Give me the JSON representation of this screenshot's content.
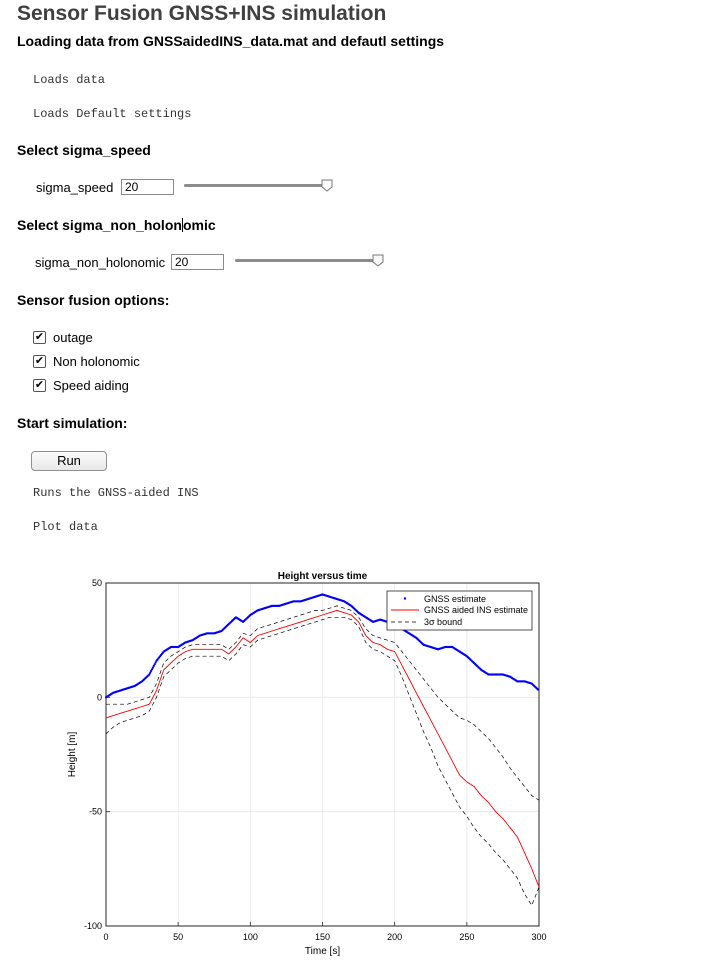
{
  "title": "Sensor Fusion GNSS+INS simulation",
  "loading_heading": "Loading data from GNSSaidedINS_data.mat and defautl settings",
  "loads_data_text": "Loads data",
  "loads_defaults_text": "Loads Default settings",
  "sigma_speed": {
    "heading": "Select sigma_speed",
    "label": "sigma_speed",
    "value": "20",
    "slider_fraction": 1.0
  },
  "sigma_non_holonomic": {
    "heading": "Select sigma_non_holon",
    "heading_tail": "omic",
    "label": "sigma_non_holonomic",
    "value": "20",
    "slider_fraction": 1.0
  },
  "options": {
    "heading": "Sensor fusion options:",
    "items": [
      {
        "label": "outage",
        "checked": true
      },
      {
        "label": "Non holonomic",
        "checked": true
      },
      {
        "label": "Speed aiding",
        "checked": true
      }
    ]
  },
  "simulation": {
    "heading": "Start simulation:",
    "run_label": "Run",
    "runs_text": "Runs the GNSS-aided INS",
    "plot_text": "Plot data"
  },
  "chart_data": {
    "type": "line",
    "title": "Height versus time",
    "xlabel": "Time [s]",
    "ylabel": "Height [m]",
    "xlim": [
      0,
      300
    ],
    "ylim": [
      -100,
      50
    ],
    "xticks": [
      0,
      50,
      100,
      150,
      200,
      250,
      300
    ],
    "yticks": [
      50,
      0,
      -50,
      -100
    ],
    "grid": true,
    "legend_position": "top-right",
    "legend": [
      "GNSS estimate",
      "GNSS aided INS estimate",
      "3σ bound"
    ],
    "series": [
      {
        "name": "GNSS estimate",
        "style": "dots",
        "color": "#0000ff",
        "x": [
          0,
          5,
          10,
          15,
          20,
          25,
          30,
          35,
          40,
          45,
          50,
          55,
          60,
          65,
          70,
          75,
          80,
          85,
          90,
          95,
          100,
          105,
          110,
          115,
          120,
          125,
          130,
          135,
          140,
          145,
          150,
          155,
          160,
          165,
          170,
          175,
          180,
          185,
          190,
          195,
          200,
          205,
          210,
          215,
          220,
          225,
          230,
          235,
          240,
          245,
          250,
          255,
          260,
          265,
          270,
          275,
          280,
          285,
          290,
          295,
          300
        ],
        "y": [
          0,
          2,
          3,
          4,
          5,
          7,
          10,
          16,
          20,
          22,
          22,
          24,
          25,
          27,
          28,
          28,
          29,
          32,
          35,
          33,
          36,
          38,
          39,
          40,
          40,
          41,
          42,
          42,
          43,
          44,
          45,
          44,
          43,
          42,
          40,
          37,
          35,
          33,
          34,
          33,
          32,
          30,
          28,
          26,
          23,
          22,
          21,
          22,
          22,
          20,
          18,
          15,
          12,
          10,
          10,
          10,
          9,
          7,
          7,
          6,
          3
        ]
      },
      {
        "name": "GNSS aided INS estimate",
        "style": "line",
        "color": "#ff0000",
        "x": [
          0,
          5,
          10,
          15,
          20,
          25,
          30,
          35,
          40,
          45,
          50,
          55,
          60,
          65,
          70,
          75,
          80,
          85,
          90,
          95,
          100,
          105,
          110,
          115,
          120,
          125,
          130,
          135,
          140,
          145,
          150,
          155,
          160,
          165,
          170,
          175,
          180,
          185,
          190,
          195,
          200,
          205,
          210,
          215,
          220,
          225,
          230,
          235,
          240,
          245,
          250,
          255,
          260,
          265,
          270,
          275,
          280,
          285,
          290,
          295,
          300
        ],
        "y": [
          -9,
          -8,
          -7,
          -6,
          -5,
          -4,
          -3,
          3,
          12,
          15,
          18,
          20,
          21,
          21,
          21,
          21,
          21,
          19,
          22,
          26,
          24,
          27,
          28,
          29,
          30,
          31,
          32,
          33,
          34,
          35,
          36,
          37,
          38,
          37,
          36,
          33,
          27,
          24,
          23,
          21,
          20,
          14,
          8,
          2,
          -4,
          -10,
          -16,
          -22,
          -28,
          -34,
          -37,
          -39,
          -43,
          -46,
          -50,
          -53,
          -57,
          -61,
          -68,
          -75,
          -83
        ]
      },
      {
        "name": "3σ bound",
        "style": "dashed",
        "color": "#000000",
        "x": [
          0,
          5,
          10,
          15,
          20,
          25,
          30,
          35,
          40,
          45,
          50,
          55,
          60,
          65,
          70,
          75,
          80,
          85,
          90,
          95,
          100,
          105,
          110,
          115,
          120,
          125,
          130,
          135,
          140,
          145,
          150,
          155,
          160,
          165,
          170,
          175,
          180,
          185,
          190,
          195,
          200,
          205,
          210,
          215,
          220,
          225,
          230,
          235,
          240,
          245,
          250,
          255,
          260,
          265,
          270,
          275,
          280,
          285,
          290,
          295,
          300
        ],
        "y": [
          -3,
          -3,
          -3,
          -3,
          -2,
          -1,
          0,
          6,
          15,
          18,
          20,
          22,
          23,
          23,
          23,
          23,
          23,
          21,
          24,
          28,
          27,
          30,
          31,
          32,
          33,
          34,
          35,
          36,
          37,
          38,
          38,
          39,
          40,
          39,
          38,
          35,
          30,
          27,
          26,
          25,
          24,
          20,
          16,
          12,
          8,
          4,
          0,
          -3,
          -6,
          -9,
          -10,
          -12,
          -15,
          -18,
          -22,
          -26,
          -31,
          -35,
          -39,
          -43,
          -45
        ]
      },
      {
        "name": "",
        "style": "dashed",
        "color": "#000000",
        "x": [
          0,
          5,
          10,
          15,
          20,
          25,
          30,
          35,
          40,
          45,
          50,
          55,
          60,
          65,
          70,
          75,
          80,
          85,
          90,
          95,
          100,
          105,
          110,
          115,
          120,
          125,
          130,
          135,
          140,
          145,
          150,
          155,
          160,
          165,
          170,
          175,
          180,
          185,
          190,
          195,
          200,
          205,
          210,
          215,
          220,
          225,
          230,
          235,
          240,
          245,
          250,
          255,
          260,
          265,
          270,
          275,
          280,
          285,
          290,
          295,
          300
        ],
        "y": [
          -16,
          -13,
          -11,
          -10,
          -9,
          -8,
          -6,
          0,
          9,
          12,
          15,
          17,
          18,
          18,
          18,
          18,
          18,
          16,
          19,
          23,
          22,
          25,
          26,
          27,
          28,
          29,
          30,
          31,
          32,
          33,
          34,
          35,
          35,
          35,
          34,
          31,
          24,
          21,
          20,
          18,
          16,
          9,
          1,
          -7,
          -15,
          -22,
          -30,
          -36,
          -42,
          -48,
          -52,
          -57,
          -61,
          -64,
          -68,
          -71,
          -75,
          -79,
          -86,
          -91,
          -83
        ]
      }
    ]
  }
}
